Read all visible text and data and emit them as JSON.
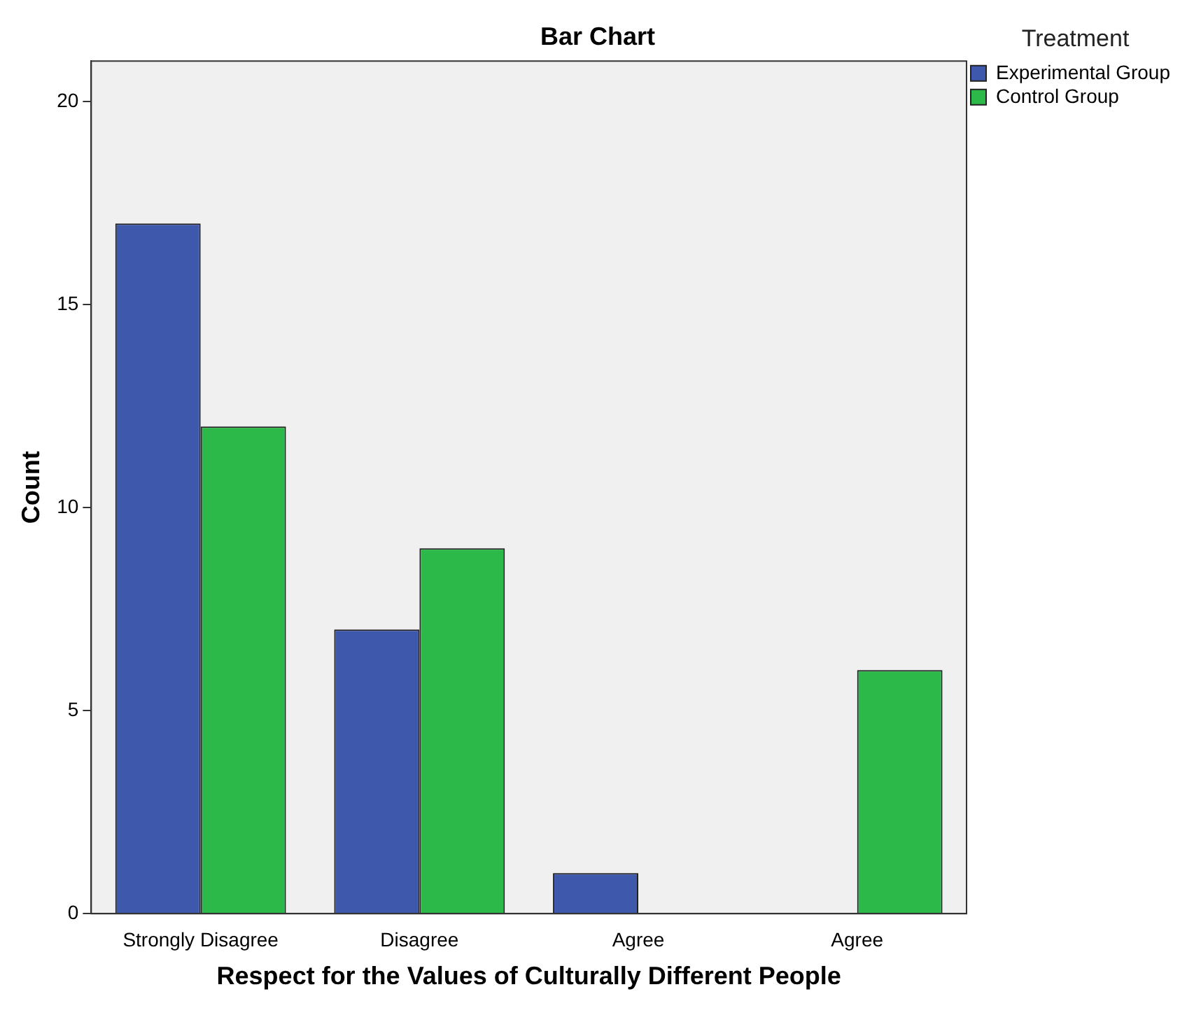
{
  "chart_data": {
    "type": "bar",
    "title": "Bar Chart",
    "xlabel": "Respect for the Values of Culturally Different People",
    "ylabel": "Count",
    "legend_title": "Treatment",
    "categories": [
      "Strongly Disagree",
      "Disagree",
      "Agree",
      "Agree"
    ],
    "series": [
      {
        "name": "Experimental Group",
        "color": "#3e58ac",
        "values": [
          17,
          7,
          1,
          0
        ]
      },
      {
        "name": "Control Group",
        "color": "#2db84a",
        "values": [
          12,
          9,
          0,
          6
        ]
      }
    ],
    "ylim": [
      0,
      21
    ],
    "yticks": [
      0,
      5,
      10,
      15,
      20
    ],
    "grid": false,
    "legend": "top right"
  }
}
